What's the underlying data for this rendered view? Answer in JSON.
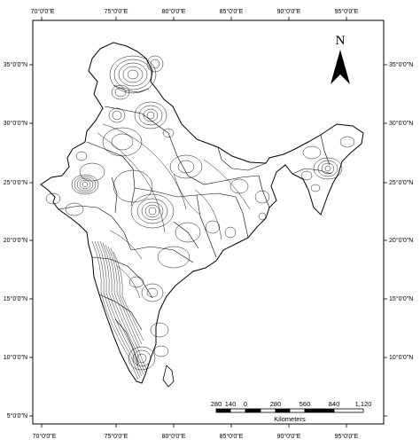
{
  "map": {
    "north_label": "N",
    "longitude_ticks": [
      "70°0'0\"E",
      "75°0'0\"E",
      "80°0'0\"E",
      "85°0'0\"E",
      "90°0'0\"E",
      "95°0'0\"E"
    ],
    "latitude_ticks": [
      "35°0'0\"N",
      "30°0'0\"N",
      "25°0'0\"N",
      "20°0'0\"N",
      "15°0'0\"N",
      "10°0'0\"N",
      "5°0'0\"N"
    ],
    "scale_bar": {
      "labels": [
        "280",
        "140",
        "0",
        "280",
        "560",
        "840",
        "1,120"
      ],
      "unit": "Kilometers"
    },
    "colors": {
      "line": "#000000",
      "background": "#ffffff"
    }
  }
}
